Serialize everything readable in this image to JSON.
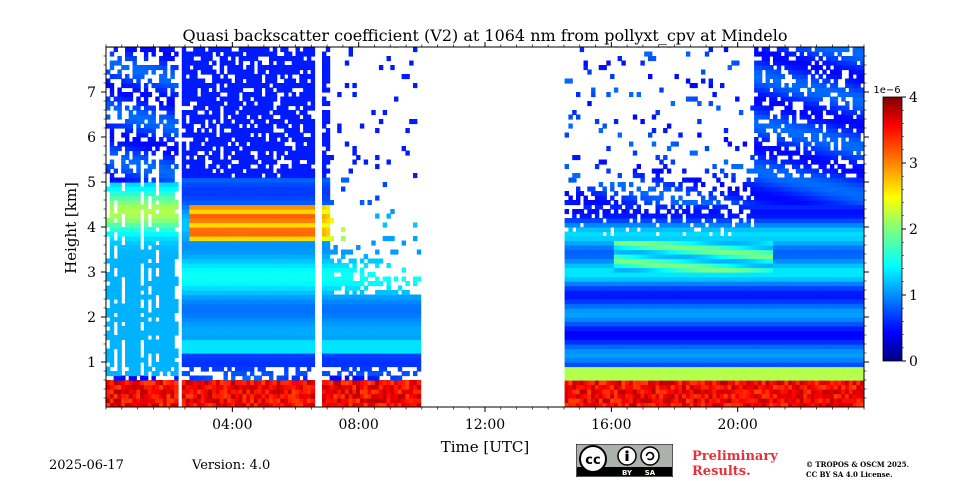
{
  "chart_data": {
    "type": "heatmap",
    "title": "Quasi backscatter coefficient (V2) at 1064 nm from pollyxt_cpv at Mindelo",
    "xlabel": "Time [UTC]",
    "ylabel": "Height [km]",
    "x_ticks": [
      "04:00",
      "08:00",
      "12:00",
      "16:00",
      "20:00"
    ],
    "y_ticks": [
      "1",
      "2",
      "3",
      "4",
      "5",
      "6",
      "7"
    ],
    "xlim_hours": [
      0,
      24
    ],
    "ylim_km": [
      0,
      8
    ],
    "colorbar": {
      "ticks": [
        "0",
        "1",
        "2",
        "3",
        "4"
      ],
      "exponent": "1e−6",
      "range": [
        0,
        4
      ],
      "colormap": "jet"
    },
    "no_data_intervals_hours": [
      [
        9.9,
        14.5
      ]
    ],
    "layers": [
      {
        "name": "near-surface layer",
        "height_km": [
          0,
          0.6
        ],
        "value": 3.8
      },
      {
        "name": "elevated layer (early)",
        "time_hours": [
          2.6,
          7.5
        ],
        "height_km": [
          3.7,
          4.4
        ],
        "value": 3.2
      },
      {
        "name": "elevated layer (late)",
        "time_hours": [
          16,
          21
        ],
        "height_km": [
          3.0,
          3.7
        ],
        "value": 2.0
      }
    ]
  },
  "footer": {
    "date": "2025-06-17",
    "version": "Version: 4.0",
    "preliminary": [
      "Preliminary",
      "Results."
    ],
    "copyright": [
      "© TROPOS & OSCM 2025.",
      "CC BY SA 4.0 License."
    ],
    "license_badge": {
      "by": "BY",
      "sa": "SA"
    }
  }
}
